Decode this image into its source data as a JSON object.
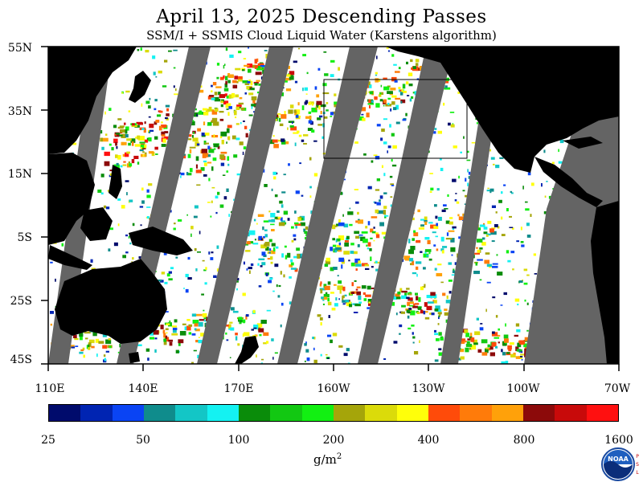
{
  "title": "April 13, 2025  Descending Passes",
  "subtitle": "SSM/I + SSMIS Cloud Liquid Water (Karstens algorithm)",
  "lat_labels": [
    "55N",
    "35N",
    "15N",
    "5S",
    "25S",
    "45S"
  ],
  "lon_labels": [
    "110E",
    "140E",
    "170E",
    "160W",
    "130W",
    "100W",
    "70W"
  ],
  "colorbar": {
    "tick_labels": [
      "25",
      "50",
      "100",
      "200",
      "400",
      "800",
      "1600"
    ],
    "units": "g/m²",
    "colors": [
      "#000b6c",
      "#0024b2",
      "#0a44f4",
      "#0f8c8c",
      "#13c6c6",
      "#14f2f2",
      "#0a8c0a",
      "#12c812",
      "#12f012",
      "#a5a50a",
      "#dbdb0a",
      "#ffff0a",
      "#ff4b0a",
      "#ff7b0a",
      "#ffa10a",
      "#8c0a0a",
      "#c80a0a",
      "#ff1010"
    ]
  },
  "map": {
    "land_color": "#000000",
    "no_data_color": "#646464",
    "background_color": "#ffffff",
    "region": "110E to 70W, 45S to 55N"
  },
  "logo": {
    "name": "NOAA",
    "side_text": "PSL"
  }
}
